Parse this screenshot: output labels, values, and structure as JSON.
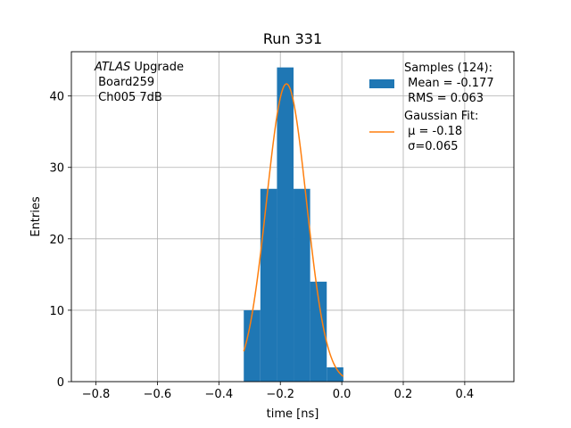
{
  "chart_data": {
    "type": "bar",
    "title": "Run 331",
    "xlabel": "time [ns]",
    "ylabel": "Entries",
    "xlim": [
      -0.88,
      0.56
    ],
    "ylim": [
      0,
      46.2
    ],
    "grid": true,
    "xticks": [
      {
        "value": -0.8,
        "label": "−0.8"
      },
      {
        "value": -0.6,
        "label": "−0.6"
      },
      {
        "value": -0.4,
        "label": "−0.4"
      },
      {
        "value": -0.2,
        "label": "−0.2"
      },
      {
        "value": 0.0,
        "label": "0.0"
      },
      {
        "value": 0.2,
        "label": "0.2"
      },
      {
        "value": 0.4,
        "label": "0.4"
      }
    ],
    "yticks": [
      {
        "value": 0,
        "label": "0"
      },
      {
        "value": 10,
        "label": "10"
      },
      {
        "value": 20,
        "label": "20"
      },
      {
        "value": 30,
        "label": "30"
      },
      {
        "value": 40,
        "label": "40"
      }
    ],
    "bins": [
      {
        "x0": -0.319,
        "x1": -0.265,
        "count": 10
      },
      {
        "x0": -0.265,
        "x1": -0.211,
        "count": 27
      },
      {
        "x0": -0.211,
        "x1": -0.157,
        "count": 44
      },
      {
        "x0": -0.157,
        "x1": -0.103,
        "count": 27
      },
      {
        "x0": -0.103,
        "x1": -0.049,
        "count": 14
      },
      {
        "x0": -0.049,
        "x1": 0.005,
        "count": 2
      }
    ],
    "fit": {
      "mu": -0.18,
      "sigma": 0.065,
      "amplitude": 41.7,
      "x_range": [
        -0.319,
        0.005
      ]
    },
    "series": [
      {
        "name": "Samples (124):\n Mean = -0.177\n RMS = 0.063",
        "color": "#1f77b4",
        "kind": "histogram"
      },
      {
        "name": "Gaussian Fit:\n μ = -0.18\n σ=0.065",
        "color": "#ff7f0e",
        "kind": "line"
      }
    ],
    "legend_position": "top-right",
    "annotation": {
      "lines": [
        {
          "italic": "ATLAS",
          "rest": " Upgrade"
        },
        {
          "italic": "",
          "rest": " Board259"
        },
        {
          "italic": "",
          "rest": " Ch005 7dB"
        }
      ]
    }
  }
}
